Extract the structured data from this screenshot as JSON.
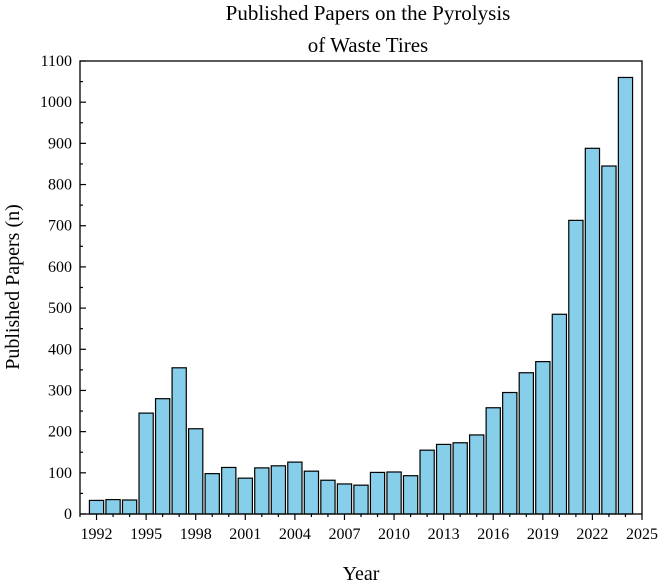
{
  "chart_data": {
    "type": "bar",
    "title_lines": [
      "Published Papers on the Pyrolysis",
      "of Waste Tires"
    ],
    "xlabel": "Year",
    "ylabel": "Published Papers (n)",
    "ylim": [
      0,
      1100
    ],
    "xlim": [
      1991,
      2025
    ],
    "x_ticks": [
      1992,
      1995,
      1998,
      2001,
      2004,
      2007,
      2010,
      2013,
      2016,
      2019,
      2022,
      2025
    ],
    "y_ticks": [
      0,
      100,
      200,
      300,
      400,
      500,
      600,
      700,
      800,
      900,
      1000,
      1100
    ],
    "bar_color": "#87ceeb",
    "grid": false,
    "x": [
      1992,
      1993,
      1994,
      1995,
      1996,
      1997,
      1998,
      1999,
      2000,
      2001,
      2002,
      2003,
      2004,
      2005,
      2006,
      2007,
      2008,
      2009,
      2010,
      2011,
      2012,
      2013,
      2014,
      2015,
      2016,
      2017,
      2018,
      2019,
      2020,
      2021,
      2022,
      2023,
      2024
    ],
    "values": [
      33,
      35,
      34,
      245,
      280,
      355,
      207,
      98,
      113,
      87,
      112,
      117,
      126,
      104,
      82,
      73,
      70,
      101,
      102,
      93,
      155,
      169,
      173,
      192,
      258,
      295,
      343,
      370,
      485,
      713,
      888,
      845,
      1060
    ]
  }
}
